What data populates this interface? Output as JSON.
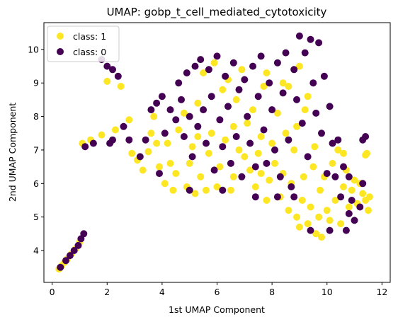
{
  "chart_data": {
    "type": "scatter",
    "title": "UMAP: gobp_t_cell_mediated_cytotoxicity",
    "xlabel": "1st UMAP Component",
    "ylabel": "2nd UMAP Component",
    "xlim": [
      -0.3,
      12.3
    ],
    "ylim": [
      3.05,
      10.8
    ],
    "xticks": [
      0,
      2,
      4,
      6,
      8,
      10,
      12
    ],
    "yticks": [
      4,
      5,
      6,
      7,
      8,
      9,
      10
    ],
    "grid": false,
    "legend_position": "upper-left",
    "series": [
      {
        "name": "class: 1",
        "color": "#fde725",
        "points": [
          [
            0.25,
            3.45
          ],
          [
            0.35,
            3.55
          ],
          [
            0.45,
            3.65
          ],
          [
            0.55,
            3.75
          ],
          [
            0.7,
            3.9
          ],
          [
            0.85,
            4.05
          ],
          [
            1.0,
            4.25
          ],
          [
            1.1,
            7.2
          ],
          [
            1.4,
            7.3
          ],
          [
            1.8,
            7.45
          ],
          [
            2.0,
            9.05
          ],
          [
            2.3,
            7.6
          ],
          [
            2.5,
            8.9
          ],
          [
            2.8,
            7.9
          ],
          [
            2.9,
            6.9
          ],
          [
            3.1,
            6.7
          ],
          [
            3.3,
            6.4
          ],
          [
            3.5,
            6.95
          ],
          [
            3.6,
            7.5
          ],
          [
            3.7,
            8.0
          ],
          [
            3.9,
            6.5
          ],
          [
            4.1,
            6.0
          ],
          [
            4.2,
            7.2
          ],
          [
            4.4,
            5.8
          ],
          [
            4.5,
            6.3
          ],
          [
            4.6,
            7.6
          ],
          [
            4.8,
            8.1
          ],
          [
            4.9,
            5.9
          ],
          [
            5.0,
            6.6
          ],
          [
            5.1,
            7.1
          ],
          [
            5.2,
            5.7
          ],
          [
            5.3,
            8.4
          ],
          [
            5.4,
            6.2
          ],
          [
            5.5,
            9.3
          ],
          [
            5.6,
            5.8
          ],
          [
            5.7,
            6.9
          ],
          [
            5.8,
            7.5
          ],
          [
            5.9,
            9.6
          ],
          [
            6.0,
            5.9
          ],
          [
            6.1,
            6.5
          ],
          [
            6.2,
            8.8
          ],
          [
            6.3,
            7.3
          ],
          [
            6.4,
            9.1
          ],
          [
            6.5,
            5.8
          ],
          [
            6.6,
            6.2
          ],
          [
            6.7,
            8.5
          ],
          [
            6.8,
            7.0
          ],
          [
            6.9,
            9.4
          ],
          [
            7.0,
            6.8
          ],
          [
            7.1,
            7.8
          ],
          [
            7.2,
            6.4
          ],
          [
            7.3,
            8.2
          ],
          [
            7.4,
            5.9
          ],
          [
            7.5,
            6.9
          ],
          [
            7.6,
            7.4
          ],
          [
            7.7,
            8.9
          ],
          [
            7.8,
            5.5
          ],
          [
            7.9,
            6.1
          ],
          [
            8.0,
            7.2
          ],
          [
            8.1,
            6.6
          ],
          [
            8.2,
            8.1
          ],
          [
            8.3,
            5.6
          ],
          [
            8.4,
            6.3
          ],
          [
            8.5,
            7.5
          ],
          [
            8.6,
            5.2
          ],
          [
            8.7,
            6.0
          ],
          [
            8.8,
            7.0
          ],
          [
            8.9,
            5.0
          ],
          [
            9.0,
            4.7
          ],
          [
            9.1,
            5.5
          ],
          [
            9.15,
            6.2
          ],
          [
            9.2,
            8.2
          ],
          [
            9.3,
            4.8
          ],
          [
            9.4,
            5.3
          ],
          [
            9.5,
            6.5
          ],
          [
            9.55,
            7.1
          ],
          [
            9.6,
            4.5
          ],
          [
            9.7,
            5.0
          ],
          [
            9.75,
            5.8
          ],
          [
            9.8,
            4.4
          ],
          [
            9.9,
            6.2
          ],
          [
            10.0,
            5.2
          ],
          [
            10.1,
            4.9
          ],
          [
            10.2,
            6.6
          ],
          [
            10.3,
            5.5
          ],
          [
            10.4,
            7.0
          ],
          [
            10.5,
            4.8
          ],
          [
            10.6,
            5.9
          ],
          [
            10.7,
            6.4
          ],
          [
            10.8,
            5.3
          ],
          [
            10.9,
            5.8
          ],
          [
            11.0,
            6.1
          ],
          [
            11.1,
            5.4
          ],
          [
            11.2,
            6.0
          ],
          [
            11.3,
            5.7
          ],
          [
            11.4,
            5.5
          ],
          [
            11.45,
            6.9
          ],
          [
            11.5,
            5.2
          ],
          [
            11.55,
            5.6
          ],
          [
            11.4,
            6.85
          ],
          [
            10.6,
            6.9
          ],
          [
            9.3,
            8.6
          ],
          [
            8.6,
            8.9
          ],
          [
            8.9,
            7.7
          ],
          [
            7.6,
            6.3
          ],
          [
            6.6,
            7.7
          ],
          [
            5.3,
            7.4
          ],
          [
            4.3,
            6.6
          ],
          [
            3.8,
            7.2
          ],
          [
            9.0,
            9.5
          ],
          [
            8.4,
            9.0
          ],
          [
            7.8,
            9.3
          ]
        ]
      },
      {
        "name": "class: 0",
        "color": "#440154",
        "points": [
          [
            0.3,
            3.5
          ],
          [
            0.5,
            3.7
          ],
          [
            0.65,
            3.85
          ],
          [
            0.8,
            4.0
          ],
          [
            0.95,
            4.15
          ],
          [
            1.05,
            4.35
          ],
          [
            1.15,
            4.5
          ],
          [
            1.2,
            7.1
          ],
          [
            1.5,
            7.2
          ],
          [
            1.8,
            9.7
          ],
          [
            2.0,
            9.5
          ],
          [
            2.2,
            9.4
          ],
          [
            2.4,
            9.2
          ],
          [
            2.6,
            7.7
          ],
          [
            3.4,
            7.3
          ],
          [
            3.6,
            8.2
          ],
          [
            3.8,
            8.4
          ],
          [
            4.0,
            8.6
          ],
          [
            4.1,
            7.5
          ],
          [
            4.3,
            8.2
          ],
          [
            4.5,
            7.9
          ],
          [
            4.6,
            9.0
          ],
          [
            4.7,
            8.5
          ],
          [
            4.8,
            7.4
          ],
          [
            4.9,
            9.3
          ],
          [
            5.0,
            8.0
          ],
          [
            5.1,
            6.8
          ],
          [
            5.2,
            9.5
          ],
          [
            5.3,
            7.7
          ],
          [
            5.4,
            9.7
          ],
          [
            5.5,
            8.2
          ],
          [
            5.6,
            7.2
          ],
          [
            5.7,
            9.4
          ],
          [
            5.8,
            8.6
          ],
          [
            5.9,
            6.4
          ],
          [
            6.0,
            9.8
          ],
          [
            6.1,
            7.9
          ],
          [
            6.2,
            7.1
          ],
          [
            6.3,
            9.2
          ],
          [
            6.4,
            8.3
          ],
          [
            6.5,
            6.6
          ],
          [
            6.6,
            9.6
          ],
          [
            6.7,
            7.4
          ],
          [
            6.8,
            8.8
          ],
          [
            6.9,
            6.2
          ],
          [
            7.0,
            9.1
          ],
          [
            7.1,
            8.0
          ],
          [
            7.2,
            7.2
          ],
          [
            7.3,
            9.5
          ],
          [
            7.4,
            6.5
          ],
          [
            7.5,
            8.6
          ],
          [
            7.6,
            9.8
          ],
          [
            7.7,
            7.6
          ],
          [
            7.8,
            6.6
          ],
          [
            7.9,
            9.0
          ],
          [
            8.0,
            8.2
          ],
          [
            8.1,
            7.0
          ],
          [
            8.2,
            9.6
          ],
          [
            8.3,
            6.2
          ],
          [
            8.4,
            8.7
          ],
          [
            8.5,
            9.9
          ],
          [
            8.6,
            7.3
          ],
          [
            8.7,
            5.9
          ],
          [
            8.8,
            9.4
          ],
          [
            8.9,
            8.5
          ],
          [
            9.0,
            10.4
          ],
          [
            9.1,
            7.8
          ],
          [
            9.2,
            9.9
          ],
          [
            9.3,
            6.8
          ],
          [
            9.4,
            10.3
          ],
          [
            9.5,
            9.0
          ],
          [
            9.6,
            8.1
          ],
          [
            9.7,
            10.2
          ],
          [
            9.8,
            7.5
          ],
          [
            9.9,
            9.2
          ],
          [
            10.0,
            6.3
          ],
          [
            10.1,
            8.3
          ],
          [
            10.2,
            7.2
          ],
          [
            10.3,
            6.2
          ],
          [
            10.4,
            7.3
          ],
          [
            10.5,
            5.6
          ],
          [
            10.6,
            6.5
          ],
          [
            10.7,
            4.6
          ],
          [
            10.8,
            5.1
          ],
          [
            10.9,
            5.5
          ],
          [
            11.0,
            4.9
          ],
          [
            11.2,
            5.3
          ],
          [
            11.3,
            7.3
          ],
          [
            11.4,
            7.4
          ],
          [
            11.3,
            6.0
          ],
          [
            10.8,
            6.2
          ],
          [
            10.1,
            4.6
          ],
          [
            9.4,
            4.6
          ],
          [
            8.8,
            5.6
          ],
          [
            8.2,
            5.6
          ],
          [
            7.4,
            5.6
          ],
          [
            6.2,
            5.8
          ],
          [
            5.0,
            5.8
          ],
          [
            3.9,
            6.3
          ],
          [
            3.2,
            6.8
          ],
          [
            2.8,
            7.3
          ],
          [
            2.2,
            7.3
          ],
          [
            2.1,
            7.2
          ]
        ]
      }
    ]
  }
}
